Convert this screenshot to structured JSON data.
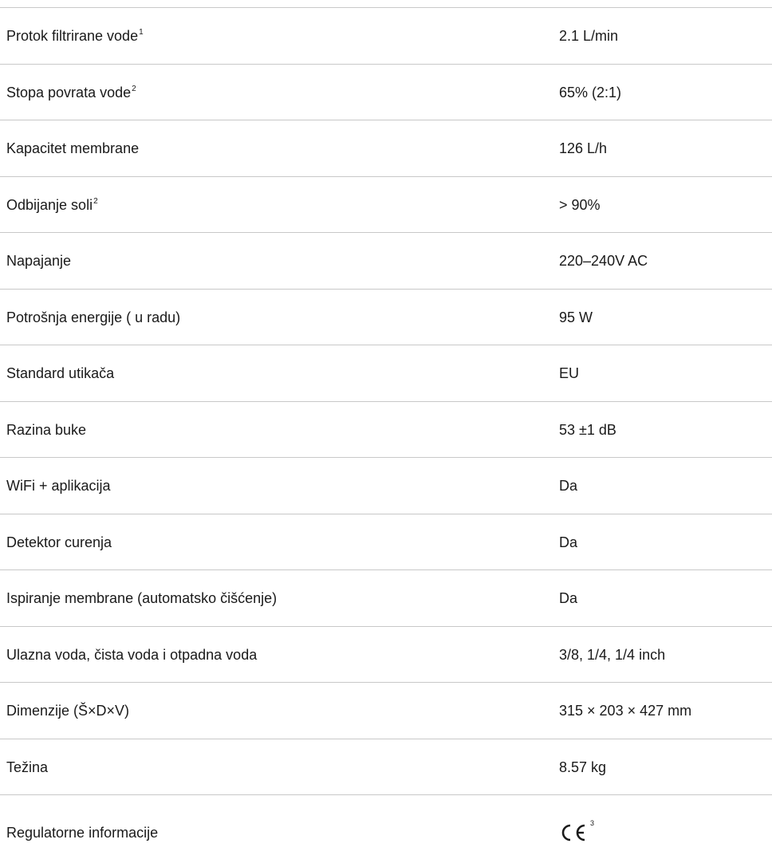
{
  "specs": [
    {
      "label": "Protok filtrirane vode",
      "note": "1",
      "value": "2.1 L/min"
    },
    {
      "label": "Stopa povrata vode",
      "note": "2",
      "value": "65% (2:1)"
    },
    {
      "label": "Kapacitet membrane",
      "note": "",
      "value": "126 L/h"
    },
    {
      "label": "Odbijanje soli",
      "note": "2",
      "value": "> 90%"
    },
    {
      "label": "Napajanje",
      "note": "",
      "value": "220–240V AC"
    },
    {
      "label": "Potrošnja energije ( u radu)",
      "note": "",
      "value": "95 W"
    },
    {
      "label": "Standard utikača",
      "note": "",
      "value": "EU"
    },
    {
      "label": "Razina buke",
      "note": "",
      "value": "53 ±1 dB"
    },
    {
      "label": "WiFi + aplikacija",
      "note": "",
      "value": "Da"
    },
    {
      "label": "Detektor curenja",
      "note": "",
      "value": "Da"
    },
    {
      "label": "Ispiranje membrane (automatsko čišćenje)",
      "note": "",
      "value": "Da"
    },
    {
      "label": "Ulazna voda, čista voda i otpadna voda",
      "note": "",
      "value": "3/8, 1/4, 1/4 inch"
    },
    {
      "label": "Dimenzije (Š×D×V)",
      "note": "",
      "value": "315 × 203 × 427 mm"
    },
    {
      "label": "Težina",
      "note": "",
      "value": "8.57 kg"
    }
  ],
  "regulatory": {
    "label": "Regulatorne informacije",
    "mark_icon": "ce-mark-icon",
    "note": "3"
  },
  "colors": {
    "divider": "#c8c8c8",
    "text": "#1a1a1a"
  }
}
